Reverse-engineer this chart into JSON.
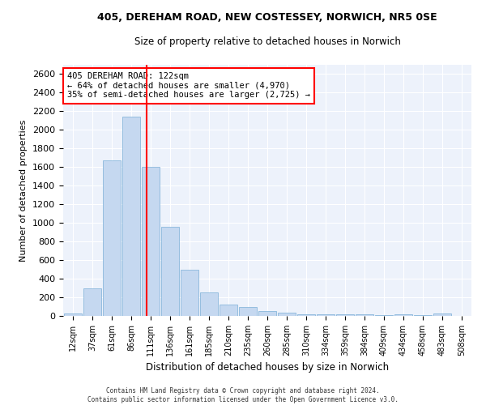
{
  "title_line1": "405, DEREHAM ROAD, NEW COSTESSEY, NORWICH, NR5 0SE",
  "title_line2": "Size of property relative to detached houses in Norwich",
  "xlabel": "Distribution of detached houses by size in Norwich",
  "ylabel": "Number of detached properties",
  "bar_color": "#c5d8f0",
  "bar_edge_color": "#7aaed6",
  "annotation_text": "405 DEREHAM ROAD: 122sqm\n← 64% of detached houses are smaller (4,970)\n35% of semi-detached houses are larger (2,725) →",
  "vline_x": 3.8,
  "vline_color": "red",
  "footer_line1": "Contains HM Land Registry data © Crown copyright and database right 2024.",
  "footer_line2": "Contains public sector information licensed under the Open Government Licence v3.0.",
  "categories": [
    "12sqm",
    "37sqm",
    "61sqm",
    "86sqm",
    "111sqm",
    "136sqm",
    "161sqm",
    "185sqm",
    "210sqm",
    "235sqm",
    "260sqm",
    "285sqm",
    "310sqm",
    "334sqm",
    "359sqm",
    "384sqm",
    "409sqm",
    "434sqm",
    "458sqm",
    "483sqm",
    "508sqm"
  ],
  "values": [
    25,
    300,
    1670,
    2140,
    1600,
    960,
    500,
    250,
    120,
    100,
    50,
    35,
    20,
    20,
    20,
    20,
    10,
    20,
    5,
    25,
    0
  ],
  "ylim": [
    0,
    2700
  ],
  "yticks": [
    0,
    200,
    400,
    600,
    800,
    1000,
    1200,
    1400,
    1600,
    1800,
    2000,
    2200,
    2400,
    2600
  ],
  "background_color": "#edf2fb",
  "grid_color": "#ffffff",
  "annotation_box_color": "white",
  "annotation_box_edge": "red",
  "title_fontsize": 9,
  "subtitle_fontsize": 8.5
}
